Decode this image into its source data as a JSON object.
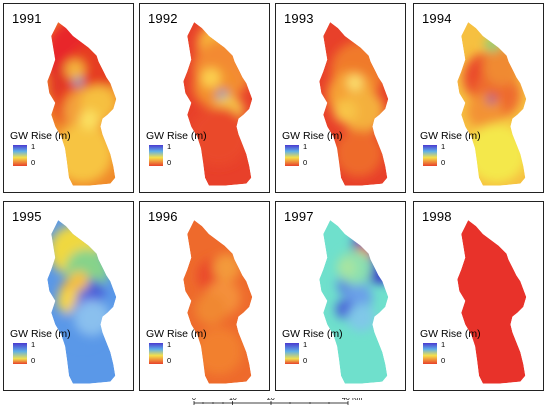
{
  "panels": [
    {
      "year": "1991",
      "scheme": "warm",
      "legend": {
        "title": "GW Rise (m)",
        "hi": "1",
        "lo": "0"
      },
      "base": "#f08a2a",
      "spots": [
        [
          0.5,
          0.22,
          "#e8282a",
          40
        ],
        [
          0.45,
          0.4,
          "#e03426",
          30
        ],
        [
          0.62,
          0.3,
          "#e63c22",
          26
        ],
        [
          0.4,
          0.52,
          "#e84020",
          22
        ],
        [
          0.55,
          0.55,
          "#f3a03a",
          24
        ],
        [
          0.5,
          0.8,
          "#f7c442",
          30
        ],
        [
          0.7,
          0.5,
          "#f6c040",
          18
        ],
        [
          0.44,
          0.37,
          "#3aa6d8",
          5
        ],
        [
          0.58,
          0.6,
          "#fbe060",
          10
        ],
        [
          0.4,
          0.3,
          "#f5b43e",
          10
        ]
      ]
    },
    {
      "year": "1992",
      "scheme": "warm",
      "legend": {
        "title": "GW Rise (m)",
        "hi": "1",
        "lo": "0"
      },
      "base": "#e8402a",
      "spots": [
        [
          0.5,
          0.15,
          "#f7b43a",
          22
        ],
        [
          0.55,
          0.3,
          "#f38a30",
          30
        ],
        [
          0.45,
          0.4,
          "#f3902e",
          22
        ],
        [
          0.55,
          0.46,
          "#2d9cd8",
          6
        ],
        [
          0.62,
          0.55,
          "#f6c44a",
          16
        ],
        [
          0.4,
          0.35,
          "#fcd050",
          10
        ],
        [
          0.5,
          0.7,
          "#ea4a2a",
          30
        ]
      ]
    },
    {
      "year": "1993",
      "scheme": "warm",
      "legend": {
        "title": "GW Rise (m)",
        "hi": "1",
        "lo": "0"
      },
      "base": "#e8402a",
      "spots": [
        [
          0.55,
          0.3,
          "#f07a2c",
          28
        ],
        [
          0.45,
          0.45,
          "#f5a034",
          24
        ],
        [
          0.6,
          0.55,
          "#f4b03e",
          22
        ],
        [
          0.5,
          0.38,
          "#fbe070",
          8
        ],
        [
          0.38,
          0.55,
          "#f8c446",
          12
        ],
        [
          0.55,
          0.8,
          "#ee6a2c",
          24
        ]
      ]
    },
    {
      "year": "1994",
      "scheme": "warm",
      "legend": {
        "title": "GW Rise (m)",
        "hi": "1",
        "lo": "0"
      },
      "base": "#f6c040",
      "spots": [
        [
          0.45,
          0.35,
          "#ea4a2c",
          26
        ],
        [
          0.55,
          0.45,
          "#ee6a2e",
          24
        ],
        [
          0.62,
          0.28,
          "#f08a30",
          20
        ],
        [
          0.4,
          0.55,
          "#f39234",
          18
        ],
        [
          0.55,
          0.8,
          "#f4e84c",
          30
        ],
        [
          0.5,
          0.15,
          "#8cd078",
          8
        ],
        [
          0.48,
          0.48,
          "#6b3ab0",
          4
        ]
      ]
    },
    {
      "year": "1995",
      "scheme": "cool",
      "legend": {
        "title": "GW Rise (m)",
        "hi": "1",
        "lo": "0"
      },
      "base": "#5a98e8",
      "spots": [
        [
          0.4,
          0.2,
          "#f0d840",
          26
        ],
        [
          0.55,
          0.32,
          "#86d38a",
          22
        ],
        [
          0.38,
          0.45,
          "#f2a83a",
          14
        ],
        [
          0.45,
          0.55,
          "#e84030",
          10
        ],
        [
          0.35,
          0.5,
          "#f6d44a",
          14
        ],
        [
          0.6,
          0.45,
          "#4a60d8",
          14
        ],
        [
          0.55,
          0.55,
          "#6b6ae0",
          14
        ],
        [
          0.45,
          0.38,
          "#f4c040",
          10
        ],
        [
          0.5,
          0.65,
          "#5a98e8",
          20
        ],
        [
          0.62,
          0.6,
          "#8ac0ee",
          18
        ]
      ]
    },
    {
      "year": "1996",
      "scheme": "warm",
      "legend": {
        "title": "GW Rise (m)",
        "hi": "1",
        "lo": "0"
      },
      "base": "#ee6a2c",
      "spots": [
        [
          0.45,
          0.35,
          "#ea4a2a",
          18
        ],
        [
          0.55,
          0.48,
          "#f4903a",
          18
        ],
        [
          0.4,
          0.55,
          "#f08830",
          16
        ],
        [
          0.6,
          0.3,
          "#f39a3a",
          14
        ],
        [
          0.5,
          0.8,
          "#f2802e",
          24
        ]
      ]
    },
    {
      "year": "1997",
      "scheme": "cool",
      "legend": {
        "title": "GW Rise (m)",
        "hi": "1",
        "lo": "0"
      },
      "base": "#6fe0cc",
      "spots": [
        [
          0.82,
          0.22,
          "#3a38c8",
          30
        ],
        [
          0.6,
          0.22,
          "#f07830",
          10
        ],
        [
          0.45,
          0.4,
          "#5a80e0",
          14
        ],
        [
          0.55,
          0.48,
          "#6aa0e8",
          14
        ],
        [
          0.38,
          0.55,
          "#4a60d8",
          10
        ],
        [
          0.5,
          0.3,
          "#8ae0b0",
          18
        ],
        [
          0.58,
          0.6,
          "#80c8e8",
          14
        ],
        [
          0.4,
          0.3,
          "#a8e4a0",
          10
        ]
      ]
    },
    {
      "year": "1998",
      "scheme": "warm",
      "legend": {
        "title": "GW Rise (m)",
        "hi": "1",
        "lo": "0"
      },
      "base": "#e8322a",
      "spots": []
    }
  ],
  "scalebar": {
    "ticks": [
      "0",
      "10",
      "20",
      "40"
    ],
    "unit": "Km"
  },
  "colors": {
    "warm_hi": "#f2e04a",
    "warm_lo": "#e8402a",
    "cool_hi": "#5a9ae8",
    "cool_lo": "#f0803a"
  }
}
